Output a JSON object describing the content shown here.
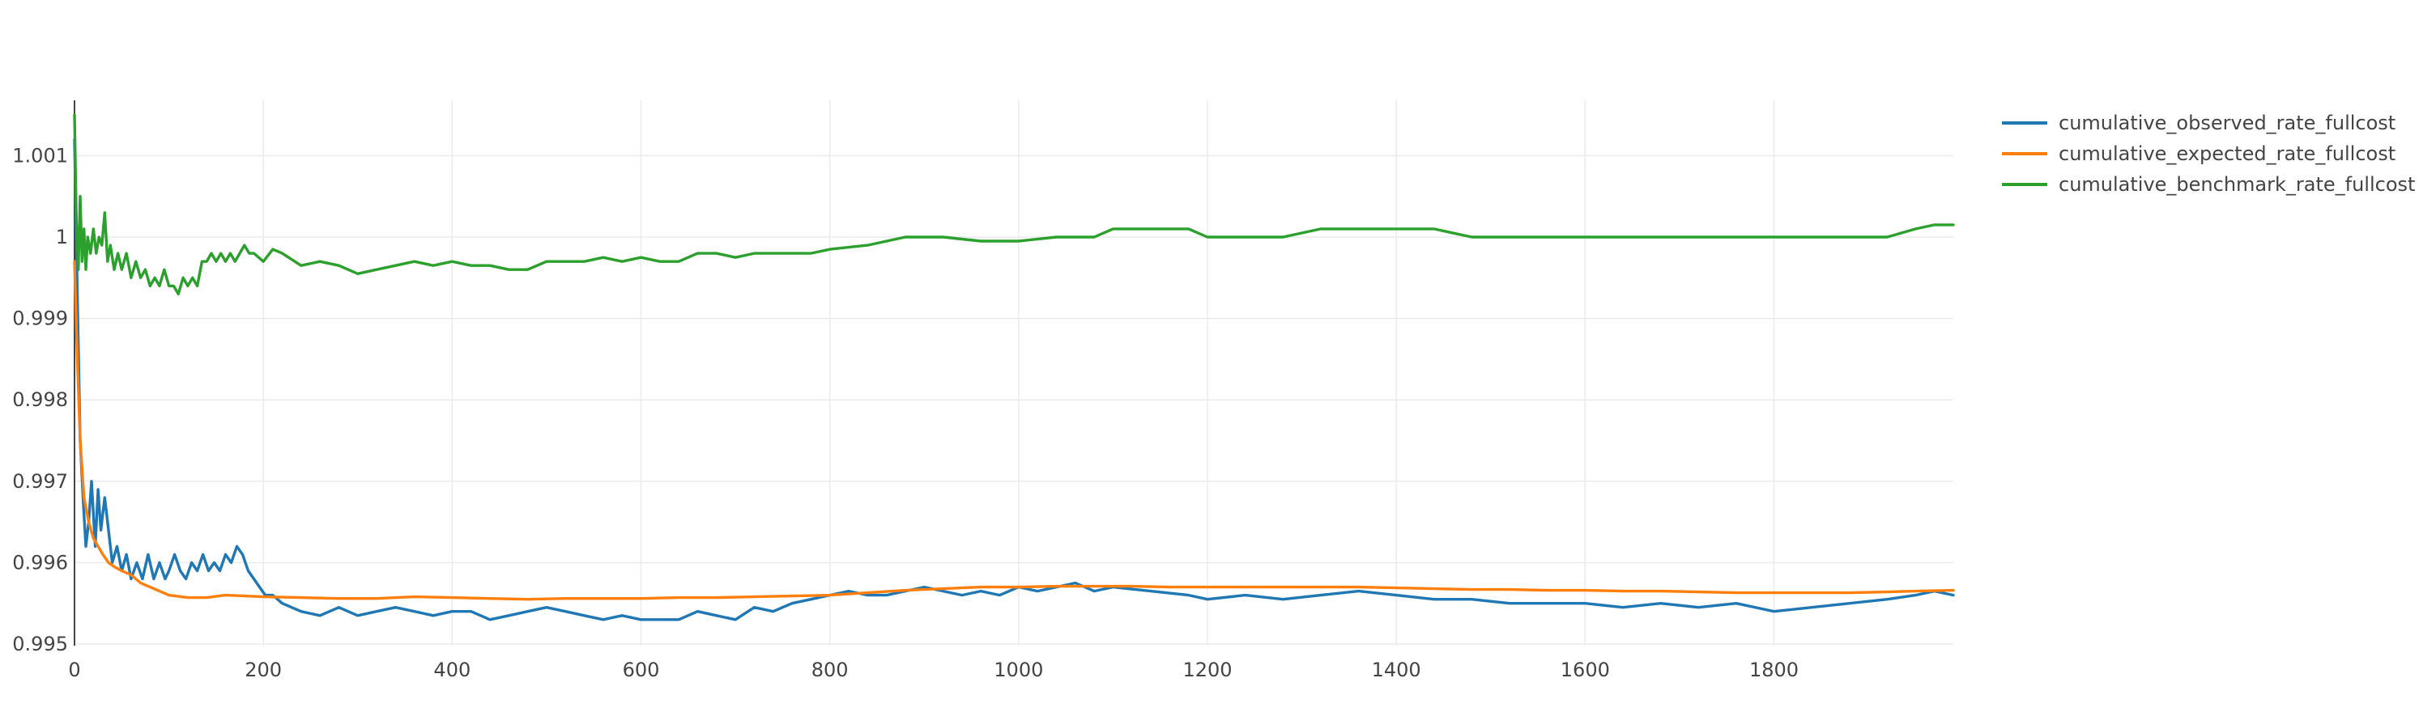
{
  "chart_data": {
    "type": "line",
    "title": "",
    "xlabel": "",
    "ylabel": "",
    "xlim": [
      0,
      1990
    ],
    "ylim": [
      0.99498,
      1.00168
    ],
    "x_ticks": [
      0,
      200,
      400,
      600,
      800,
      1000,
      1200,
      1400,
      1600,
      1800
    ],
    "x_tick_labels": [
      "0",
      "200",
      "400",
      "600",
      "800",
      "1000",
      "1200",
      "1400",
      "1600",
      "1800"
    ],
    "y_ticks": [
      0.995,
      0.996,
      0.997,
      0.998,
      0.999,
      1.0,
      1.001
    ],
    "y_tick_labels": [
      "0.995",
      "0.996",
      "0.997",
      "0.998",
      "0.999",
      "1",
      "1.001"
    ],
    "grid": true,
    "legend_position": "top-right, outside plot",
    "series": [
      {
        "name": "cumulative_observed_rate_fullcost",
        "color": "#1f77b4",
        "points": [
          [
            0,
            1.0012
          ],
          [
            3,
            0.9993
          ],
          [
            6,
            0.9975
          ],
          [
            9,
            0.9968
          ],
          [
            12,
            0.9962
          ],
          [
            15,
            0.9965
          ],
          [
            18,
            0.997
          ],
          [
            22,
            0.9962
          ],
          [
            25,
            0.9969
          ],
          [
            28,
            0.9964
          ],
          [
            32,
            0.9968
          ],
          [
            36,
            0.9964
          ],
          [
            40,
            0.996
          ],
          [
            45,
            0.9962
          ],
          [
            50,
            0.9959
          ],
          [
            55,
            0.9961
          ],
          [
            60,
            0.9958
          ],
          [
            66,
            0.996
          ],
          [
            72,
            0.9958
          ],
          [
            78,
            0.9961
          ],
          [
            84,
            0.9958
          ],
          [
            90,
            0.996
          ],
          [
            96,
            0.9958
          ],
          [
            100,
            0.9959
          ],
          [
            106,
            0.9961
          ],
          [
            112,
            0.9959
          ],
          [
            118,
            0.9958
          ],
          [
            124,
            0.996
          ],
          [
            130,
            0.9959
          ],
          [
            136,
            0.9961
          ],
          [
            142,
            0.9959
          ],
          [
            148,
            0.996
          ],
          [
            154,
            0.9959
          ],
          [
            160,
            0.9961
          ],
          [
            166,
            0.996
          ],
          [
            172,
            0.9962
          ],
          [
            178,
            0.9961
          ],
          [
            184,
            0.9959
          ],
          [
            190,
            0.9958
          ],
          [
            196,
            0.9957
          ],
          [
            202,
            0.9956
          ],
          [
            210,
            0.9956
          ],
          [
            220,
            0.9955
          ],
          [
            240,
            0.9954
          ],
          [
            260,
            0.99535
          ],
          [
            280,
            0.99545
          ],
          [
            300,
            0.99535
          ],
          [
            320,
            0.9954
          ],
          [
            340,
            0.99545
          ],
          [
            360,
            0.9954
          ],
          [
            380,
            0.99535
          ],
          [
            400,
            0.9954
          ],
          [
            420,
            0.9954
          ],
          [
            440,
            0.9953
          ],
          [
            460,
            0.99535
          ],
          [
            480,
            0.9954
          ],
          [
            500,
            0.99545
          ],
          [
            520,
            0.9954
          ],
          [
            540,
            0.99535
          ],
          [
            560,
            0.9953
          ],
          [
            580,
            0.99535
          ],
          [
            600,
            0.9953
          ],
          [
            620,
            0.9953
          ],
          [
            640,
            0.9953
          ],
          [
            660,
            0.9954
          ],
          [
            680,
            0.99535
          ],
          [
            700,
            0.9953
          ],
          [
            720,
            0.99545
          ],
          [
            740,
            0.9954
          ],
          [
            760,
            0.9955
          ],
          [
            780,
            0.99555
          ],
          [
            800,
            0.9956
          ],
          [
            820,
            0.99565
          ],
          [
            840,
            0.9956
          ],
          [
            860,
            0.9956
          ],
          [
            880,
            0.99565
          ],
          [
            900,
            0.9957
          ],
          [
            920,
            0.99565
          ],
          [
            940,
            0.9956
          ],
          [
            960,
            0.99565
          ],
          [
            980,
            0.9956
          ],
          [
            1000,
            0.9957
          ],
          [
            1020,
            0.99565
          ],
          [
            1040,
            0.9957
          ],
          [
            1060,
            0.99575
          ],
          [
            1080,
            0.99565
          ],
          [
            1100,
            0.9957
          ],
          [
            1140,
            0.99565
          ],
          [
            1180,
            0.9956
          ],
          [
            1200,
            0.99555
          ],
          [
            1240,
            0.9956
          ],
          [
            1280,
            0.99555
          ],
          [
            1320,
            0.9956
          ],
          [
            1360,
            0.99565
          ],
          [
            1400,
            0.9956
          ],
          [
            1440,
            0.99555
          ],
          [
            1480,
            0.99555
          ],
          [
            1520,
            0.9955
          ],
          [
            1560,
            0.9955
          ],
          [
            1600,
            0.9955
          ],
          [
            1640,
            0.99545
          ],
          [
            1680,
            0.9955
          ],
          [
            1720,
            0.99545
          ],
          [
            1760,
            0.9955
          ],
          [
            1800,
            0.9954
          ],
          [
            1840,
            0.99545
          ],
          [
            1880,
            0.9955
          ],
          [
            1920,
            0.99555
          ],
          [
            1950,
            0.9956
          ],
          [
            1970,
            0.99565
          ],
          [
            1990,
            0.9956
          ]
        ]
      },
      {
        "name": "cumulative_expected_rate_fullcost",
        "color": "#ff7f0e",
        "points": [
          [
            0,
            0.9997
          ],
          [
            3,
            0.9985
          ],
          [
            6,
            0.9975
          ],
          [
            10,
            0.9968
          ],
          [
            15,
            0.9965
          ],
          [
            20,
            0.9963
          ],
          [
            25,
            0.9962
          ],
          [
            30,
            0.9961
          ],
          [
            36,
            0.996
          ],
          [
            42,
            0.99595
          ],
          [
            50,
            0.9959
          ],
          [
            60,
            0.99585
          ],
          [
            70,
            0.99575
          ],
          [
            80,
            0.9957
          ],
          [
            100,
            0.9956
          ],
          [
            120,
            0.99557
          ],
          [
            140,
            0.99557
          ],
          [
            160,
            0.9956
          ],
          [
            200,
            0.99558
          ],
          [
            240,
            0.99557
          ],
          [
            280,
            0.99556
          ],
          [
            320,
            0.99556
          ],
          [
            360,
            0.99558
          ],
          [
            400,
            0.99557
          ],
          [
            440,
            0.99556
          ],
          [
            480,
            0.99555
          ],
          [
            520,
            0.99556
          ],
          [
            560,
            0.99556
          ],
          [
            600,
            0.99556
          ],
          [
            640,
            0.99557
          ],
          [
            680,
            0.99557
          ],
          [
            720,
            0.99558
          ],
          [
            760,
            0.99559
          ],
          [
            800,
            0.9956
          ],
          [
            840,
            0.99563
          ],
          [
            880,
            0.99566
          ],
          [
            920,
            0.99568
          ],
          [
            960,
            0.9957
          ],
          [
            1000,
            0.9957
          ],
          [
            1040,
            0.99571
          ],
          [
            1080,
            0.99571
          ],
          [
            1120,
            0.99571
          ],
          [
            1160,
            0.9957
          ],
          [
            1200,
            0.9957
          ],
          [
            1240,
            0.9957
          ],
          [
            1280,
            0.9957
          ],
          [
            1320,
            0.9957
          ],
          [
            1360,
            0.9957
          ],
          [
            1400,
            0.99569
          ],
          [
            1440,
            0.99568
          ],
          [
            1480,
            0.99567
          ],
          [
            1520,
            0.99567
          ],
          [
            1560,
            0.99566
          ],
          [
            1600,
            0.99566
          ],
          [
            1640,
            0.99565
          ],
          [
            1680,
            0.99565
          ],
          [
            1720,
            0.99564
          ],
          [
            1760,
            0.99563
          ],
          [
            1800,
            0.99563
          ],
          [
            1840,
            0.99563
          ],
          [
            1880,
            0.99563
          ],
          [
            1920,
            0.99564
          ],
          [
            1950,
            0.99565
          ],
          [
            1990,
            0.99566
          ]
        ]
      },
      {
        "name": "cumulative_benchmark_rate_fullcost",
        "color": "#2ca02c",
        "points": [
          [
            0,
            1.0015
          ],
          [
            2,
            1.0002
          ],
          [
            4,
            0.9996
          ],
          [
            6,
            1.0005
          ],
          [
            8,
            0.9997
          ],
          [
            10,
            1.0001
          ],
          [
            12,
            0.9996
          ],
          [
            14,
            1.0
          ],
          [
            17,
            0.9998
          ],
          [
            20,
            1.0001
          ],
          [
            23,
            0.9998
          ],
          [
            26,
            1.0
          ],
          [
            29,
            0.9999
          ],
          [
            32,
            1.0003
          ],
          [
            35,
            0.9997
          ],
          [
            38,
            0.9999
          ],
          [
            42,
            0.9996
          ],
          [
            46,
            0.9998
          ],
          [
            50,
            0.9996
          ],
          [
            55,
            0.9998
          ],
          [
            60,
            0.9995
          ],
          [
            65,
            0.9997
          ],
          [
            70,
            0.9995
          ],
          [
            75,
            0.9996
          ],
          [
            80,
            0.9994
          ],
          [
            85,
            0.9995
          ],
          [
            90,
            0.9994
          ],
          [
            95,
            0.9996
          ],
          [
            100,
            0.9994
          ],
          [
            105,
            0.9994
          ],
          [
            110,
            0.9993
          ],
          [
            115,
            0.9995
          ],
          [
            120,
            0.9994
          ],
          [
            125,
            0.9995
          ],
          [
            130,
            0.9994
          ],
          [
            135,
            0.9997
          ],
          [
            140,
            0.9997
          ],
          [
            145,
            0.9998
          ],
          [
            150,
            0.9997
          ],
          [
            155,
            0.9998
          ],
          [
            160,
            0.9997
          ],
          [
            165,
            0.9998
          ],
          [
            170,
            0.9997
          ],
          [
            175,
            0.9998
          ],
          [
            180,
            0.9999
          ],
          [
            185,
            0.9998
          ],
          [
            190,
            0.9998
          ],
          [
            200,
            0.9997
          ],
          [
            210,
            0.99985
          ],
          [
            220,
            0.9998
          ],
          [
            240,
            0.99965
          ],
          [
            260,
            0.9997
          ],
          [
            280,
            0.99965
          ],
          [
            300,
            0.99955
          ],
          [
            320,
            0.9996
          ],
          [
            340,
            0.99965
          ],
          [
            360,
            0.9997
          ],
          [
            380,
            0.99965
          ],
          [
            400,
            0.9997
          ],
          [
            420,
            0.99965
          ],
          [
            440,
            0.99965
          ],
          [
            460,
            0.9996
          ],
          [
            480,
            0.9996
          ],
          [
            500,
            0.9997
          ],
          [
            520,
            0.9997
          ],
          [
            540,
            0.9997
          ],
          [
            560,
            0.99975
          ],
          [
            580,
            0.9997
          ],
          [
            600,
            0.99975
          ],
          [
            620,
            0.9997
          ],
          [
            640,
            0.9997
          ],
          [
            660,
            0.9998
          ],
          [
            680,
            0.9998
          ],
          [
            700,
            0.99975
          ],
          [
            720,
            0.9998
          ],
          [
            740,
            0.9998
          ],
          [
            760,
            0.9998
          ],
          [
            780,
            0.9998
          ],
          [
            800,
            0.99985
          ],
          [
            840,
            0.9999
          ],
          [
            880,
            1.0
          ],
          [
            920,
            1.0
          ],
          [
            960,
            0.99995
          ],
          [
            1000,
            0.99995
          ],
          [
            1040,
            1.0
          ],
          [
            1080,
            1.0
          ],
          [
            1100,
            1.0001
          ],
          [
            1140,
            1.0001
          ],
          [
            1180,
            1.0001
          ],
          [
            1200,
            1.0
          ],
          [
            1240,
            1.0
          ],
          [
            1280,
            1.0
          ],
          [
            1320,
            1.0001
          ],
          [
            1360,
            1.0001
          ],
          [
            1400,
            1.0001
          ],
          [
            1440,
            1.0001
          ],
          [
            1480,
            1.0
          ],
          [
            1520,
            1.0
          ],
          [
            1560,
            1.0
          ],
          [
            1600,
            1.0
          ],
          [
            1640,
            1.0
          ],
          [
            1680,
            1.0
          ],
          [
            1720,
            1.0
          ],
          [
            1760,
            1.0
          ],
          [
            1800,
            1.0
          ],
          [
            1840,
            1.0
          ],
          [
            1880,
            1.0
          ],
          [
            1920,
            1.0
          ],
          [
            1950,
            1.0001
          ],
          [
            1970,
            1.00015
          ],
          [
            1990,
            1.00015
          ]
        ]
      }
    ]
  }
}
